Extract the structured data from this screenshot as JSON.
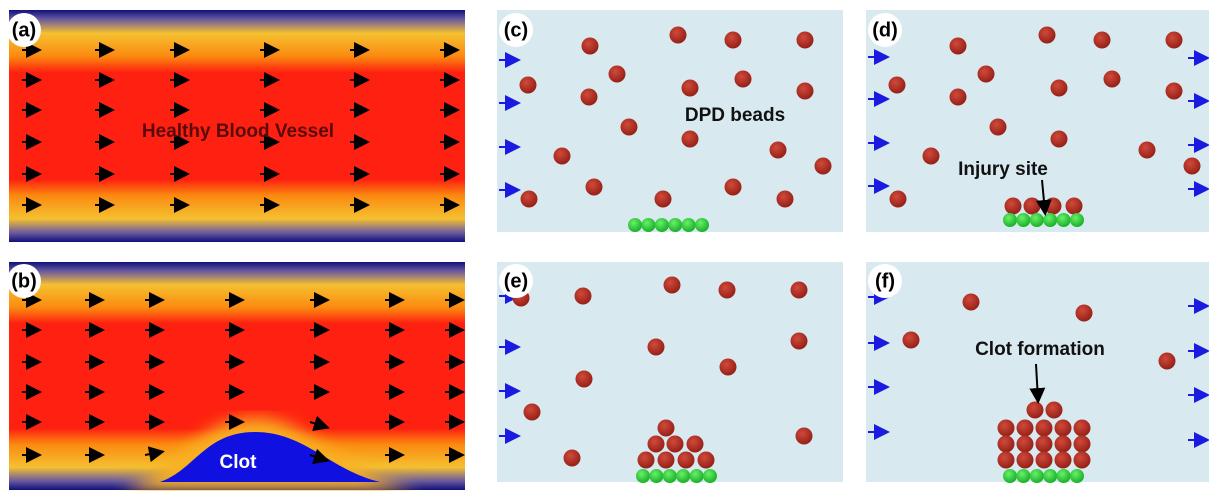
{
  "panels": {
    "a": {
      "label": "(a)",
      "text": "Healthy Blood Vessel"
    },
    "b": {
      "label": "(b)",
      "text": "Clot"
    },
    "c": {
      "label": "(c)",
      "text": "DPD beads"
    },
    "d": {
      "label": "(d)",
      "text": "Injury site"
    },
    "e": {
      "label": "(e)"
    },
    "f": {
      "label": "(f)",
      "text": "Clot formation"
    }
  }
}
